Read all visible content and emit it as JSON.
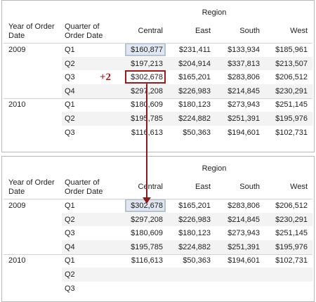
{
  "annotation": "+2",
  "tables": [
    {
      "header": "Region",
      "columns": [
        "Year of Order Date",
        "Quarter of Order Date",
        "Central",
        "East",
        "South",
        "West"
      ],
      "rows": [
        {
          "year": "2009",
          "quarter": "Q1",
          "values": [
            "$160,877",
            "$231,411",
            "$133,934",
            "$185,961"
          ]
        },
        {
          "quarter": "Q2",
          "values": [
            "$197,213",
            "$204,914",
            "$337,813",
            "$213,507"
          ]
        },
        {
          "quarter": "Q3",
          "values": [
            "$302,678",
            "$165,201",
            "$283,806",
            "$206,512"
          ]
        },
        {
          "quarter": "Q4",
          "values": [
            "$297,208",
            "$226,983",
            "$214,845",
            "$230,291"
          ]
        },
        {
          "year": "2010",
          "quarter": "Q1",
          "values": [
            "$180,609",
            "$180,123",
            "$273,943",
            "$251,145"
          ]
        },
        {
          "quarter": "Q2",
          "values": [
            "$195,785",
            "$224,882",
            "$251,391",
            "$195,976"
          ]
        },
        {
          "quarter": "Q3",
          "values": [
            "$116,613",
            "$50,363",
            "$194,601",
            "$102,731"
          ]
        }
      ]
    },
    {
      "header": "Region",
      "columns": [
        "Year of Order Date",
        "Quarter of Order Date",
        "Central",
        "East",
        "South",
        "West"
      ],
      "rows": [
        {
          "year": "2009",
          "quarter": "Q1",
          "values": [
            "$302,678",
            "$165,201",
            "$283,806",
            "$206,512"
          ]
        },
        {
          "quarter": "Q2",
          "values": [
            "$297,208",
            "$226,983",
            "$214,845",
            "$230,291"
          ]
        },
        {
          "quarter": "Q3",
          "values": [
            "$180,609",
            "$180,123",
            "$273,943",
            "$251,145"
          ]
        },
        {
          "quarter": "Q4",
          "values": [
            "$195,785",
            "$224,882",
            "$251,391",
            "$195,976"
          ]
        },
        {
          "year": "2010",
          "quarter": "Q1",
          "values": [
            "$116,613",
            "$50,363",
            "$194,601",
            "$102,731"
          ]
        },
        {
          "quarter": "Q2",
          "values": []
        },
        {
          "quarter": "Q3",
          "values": []
        }
      ]
    }
  ]
}
